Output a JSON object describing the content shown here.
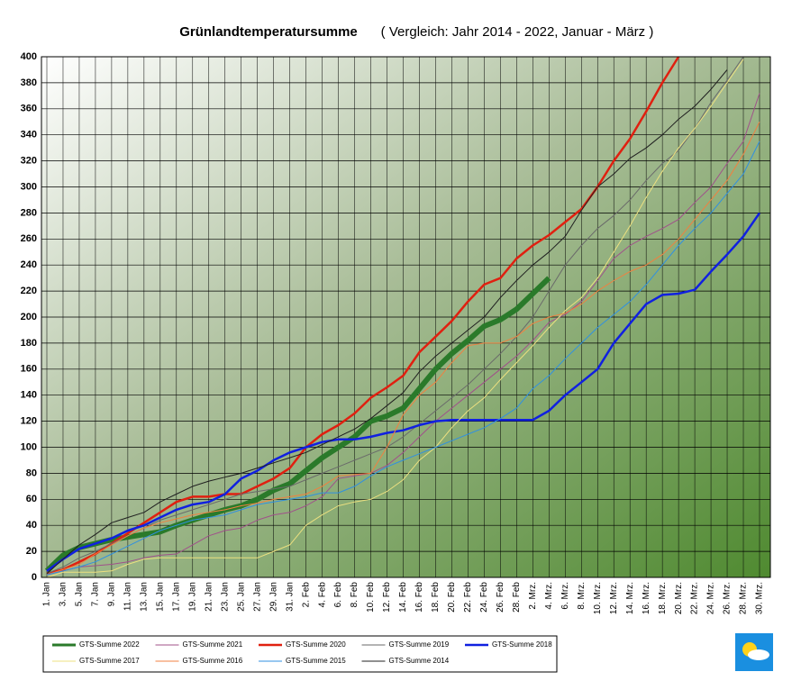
{
  "chart_data": {
    "type": "line",
    "title": "Grünlandtemperatursumme",
    "subtitle": "( Vergleich: Jahr 2014 - 2022, Januar - März )",
    "categories": [
      "1. Jan",
      "3. Jan",
      "5. Jan",
      "7. Jan",
      "9. Jan",
      "11. Jan",
      "13. Jan",
      "15. Jan",
      "17. Jan",
      "19. Jan",
      "21. Jan",
      "23. Jan",
      "25. Jan",
      "27. Jan",
      "29. Jan",
      "31. Jan",
      "2. Feb",
      "4. Feb",
      "6. Feb",
      "8. Feb",
      "10. Feb",
      "12. Feb",
      "14. Feb",
      "16. Feb",
      "18. Feb",
      "20. Feb",
      "22. Feb",
      "24. Feb",
      "26. Feb",
      "28. Feb",
      "2. Mrz.",
      "4. Mrz.",
      "6. Mrz.",
      "8. Mrz.",
      "10. Mrz.",
      "12. Mrz.",
      "14. Mrz.",
      "16. Mrz.",
      "18. Mrz.",
      "20. Mrz.",
      "22. Mrz.",
      "24. Mrz.",
      "26. Mrz.",
      "28. Mrz.",
      "30. Mrz."
    ],
    "series": [
      {
        "name": "GTS-Summe 2022",
        "color": "#2a7a2a",
        "width": 6,
        "values": [
          5,
          17,
          23,
          26,
          29,
          31,
          33,
          35,
          40,
          44,
          48,
          52,
          55,
          60,
          67,
          72,
          82,
          92,
          100,
          108,
          120,
          124,
          130,
          145,
          160,
          172,
          182,
          193,
          198,
          206,
          218,
          230,
          null,
          null,
          null,
          null,
          null,
          null,
          null,
          null,
          null,
          null,
          null,
          null,
          null
        ]
      },
      {
        "name": "GTS-Summe 2021",
        "color": "#a0508a",
        "width": 1,
        "values": [
          2,
          5,
          8,
          9,
          10,
          12,
          15,
          17,
          18,
          25,
          32,
          36,
          38,
          44,
          48,
          50,
          55,
          62,
          76,
          78,
          80,
          86,
          96,
          108,
          120,
          130,
          140,
          150,
          160,
          170,
          182,
          196,
          202,
          212,
          228,
          245,
          255,
          262,
          268,
          275,
          288,
          300,
          318,
          335,
          372
        ]
      },
      {
        "name": "GTS-Summe 2020",
        "color": "#e02010",
        "width": 2.5,
        "values": [
          3,
          6,
          12,
          18,
          26,
          34,
          42,
          50,
          58,
          62,
          62,
          64,
          64,
          70,
          76,
          84,
          100,
          110,
          117,
          126,
          138,
          146,
          155,
          173,
          185,
          197,
          212,
          225,
          230,
          245,
          255,
          263,
          273,
          283,
          300,
          320,
          337,
          358,
          380,
          400,
          null,
          null,
          null,
          null,
          null
        ]
      },
      {
        "name": "GTS-Summe 2019",
        "color": "#6a6a6a",
        "width": 1,
        "values": [
          3,
          8,
          15,
          20,
          26,
          32,
          38,
          44,
          48,
          52,
          56,
          60,
          64,
          66,
          68,
          70,
          75,
          80,
          85,
          90,
          95,
          100,
          108,
          118,
          128,
          138,
          148,
          160,
          172,
          185,
          200,
          220,
          240,
          255,
          268,
          278,
          290,
          305,
          318,
          328,
          345,
          365,
          382,
          400,
          null
        ]
      },
      {
        "name": "GTS-Summe 2018",
        "color": "#1020e0",
        "width": 2.5,
        "values": [
          5,
          14,
          22,
          26,
          30,
          36,
          40,
          46,
          52,
          56,
          58,
          64,
          76,
          82,
          90,
          96,
          100,
          104,
          106,
          106,
          108,
          111,
          113,
          117,
          120,
          121,
          121,
          121,
          121,
          121,
          121,
          128,
          140,
          150,
          160,
          180,
          195,
          210,
          217,
          218,
          221,
          235,
          248,
          262,
          280
        ]
      },
      {
        "name": "GTS-Summe 2017",
        "color": "#ece080",
        "width": 1,
        "values": [
          0,
          4,
          4,
          4,
          5,
          10,
          14,
          15,
          15,
          15,
          15,
          15,
          15,
          15,
          20,
          25,
          40,
          48,
          55,
          58,
          60,
          66,
          75,
          90,
          100,
          115,
          128,
          138,
          152,
          165,
          178,
          192,
          205,
          215,
          230,
          250,
          270,
          292,
          312,
          330,
          345,
          362,
          380,
          398,
          null
        ]
      },
      {
        "name": "GTS-Summe 2016",
        "color": "#f08040",
        "width": 1,
        "values": [
          2,
          6,
          10,
          18,
          25,
          32,
          38,
          42,
          45,
          48,
          50,
          52,
          55,
          57,
          60,
          62,
          64,
          70,
          78,
          79,
          80,
          100,
          125,
          140,
          150,
          165,
          178,
          180,
          180,
          185,
          195,
          200,
          203,
          210,
          220,
          228,
          235,
          240,
          248,
          260,
          275,
          290,
          305,
          325,
          350
        ]
      },
      {
        "name": "GTS-Summe 2015",
        "color": "#3090e0",
        "width": 1,
        "values": [
          2,
          5,
          8,
          12,
          18,
          24,
          30,
          36,
          40,
          44,
          46,
          48,
          52,
          56,
          58,
          60,
          62,
          65,
          65,
          70,
          78,
          85,
          90,
          95,
          100,
          105,
          110,
          115,
          122,
          130,
          145,
          155,
          168,
          180,
          192,
          202,
          212,
          225,
          240,
          255,
          268,
          280,
          295,
          310,
          335
        ]
      },
      {
        "name": "GTS-Summe 2014",
        "color": "#202020",
        "width": 1,
        "values": [
          3,
          14,
          25,
          33,
          42,
          46,
          50,
          58,
          64,
          70,
          74,
          77,
          80,
          84,
          88,
          92,
          96,
          102,
          108,
          114,
          122,
          132,
          142,
          158,
          170,
          180,
          190,
          200,
          215,
          228,
          240,
          250,
          262,
          282,
          300,
          310,
          322,
          330,
          340,
          352,
          362,
          375,
          390,
          null,
          null
        ]
      }
    ],
    "ylim": [
      0,
      400
    ],
    "yticks": [
      0,
      20,
      40,
      60,
      80,
      100,
      120,
      140,
      160,
      180,
      200,
      220,
      240,
      260,
      280,
      300,
      320,
      340,
      360,
      380,
      400
    ],
    "grid": true
  }
}
